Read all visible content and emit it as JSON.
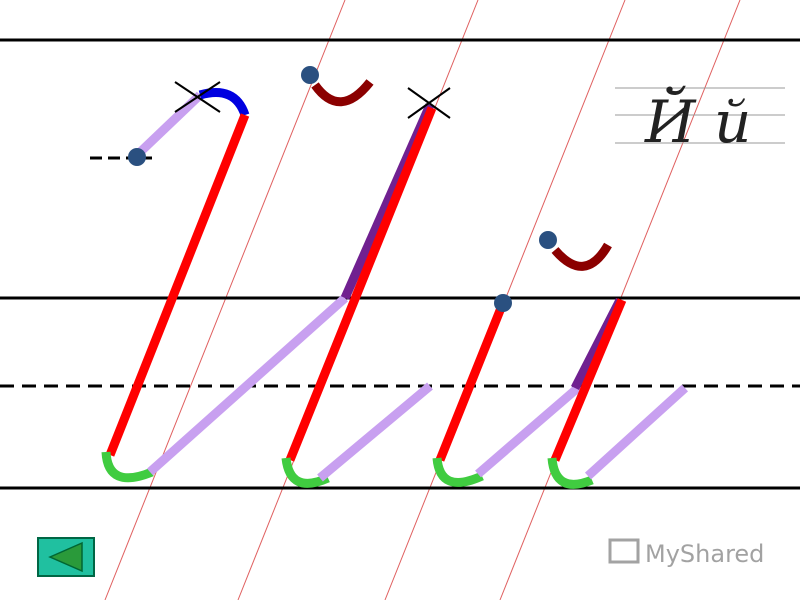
{
  "sample": {
    "text": "Й й"
  },
  "watermark": {
    "text": "MyShared"
  }
}
